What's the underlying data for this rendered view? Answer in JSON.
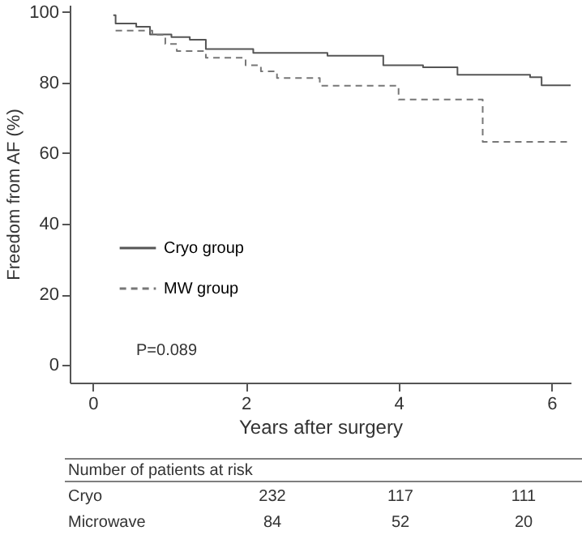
{
  "chart_data": {
    "type": "step",
    "xlabel": "Years after surgery",
    "ylabel": "Freedom from AF (%)",
    "xlim": [
      -0.3,
      6.25
    ],
    "ylim": [
      -5,
      102
    ],
    "xticks": [
      0,
      2,
      4,
      6
    ],
    "yticks": [
      0,
      20,
      40,
      60,
      80,
      100
    ],
    "grid": false,
    "legend": "bottom left",
    "series": [
      {
        "name": "Cryo group",
        "color": "#555555",
        "line_style": "solid",
        "x": [
          0.27,
          0.3,
          0.57,
          0.75,
          1.03,
          1.27,
          1.48,
          2.1,
          3.07,
          3.8,
          4.32,
          4.77,
          5.72,
          5.87,
          6.25
        ],
        "values": [
          99.1,
          96.7,
          95.8,
          93.6,
          92.9,
          92.1,
          89.5,
          88.4,
          87.6,
          84.9,
          84.3,
          82.2,
          81.5,
          79.2,
          79.2
        ]
      },
      {
        "name": "MW group",
        "color": "#777777",
        "line_style": "dashed",
        "x": [
          0.3,
          0.78,
          0.95,
          1.1,
          1.48,
          2.0,
          2.2,
          2.41,
          2.97,
          4.0,
          5.1,
          6.23
        ],
        "values": [
          94.7,
          93.5,
          90.9,
          88.9,
          87.0,
          84.9,
          83.2,
          81.3,
          79.1,
          75.2,
          63.2,
          63.2
        ]
      }
    ],
    "annotations": [
      "P=0.089",
      "Number of patients at risk",
      "Cryo",
      "232",
      "117",
      "111",
      "Microwave",
      "84",
      "52",
      "20"
    ]
  }
}
